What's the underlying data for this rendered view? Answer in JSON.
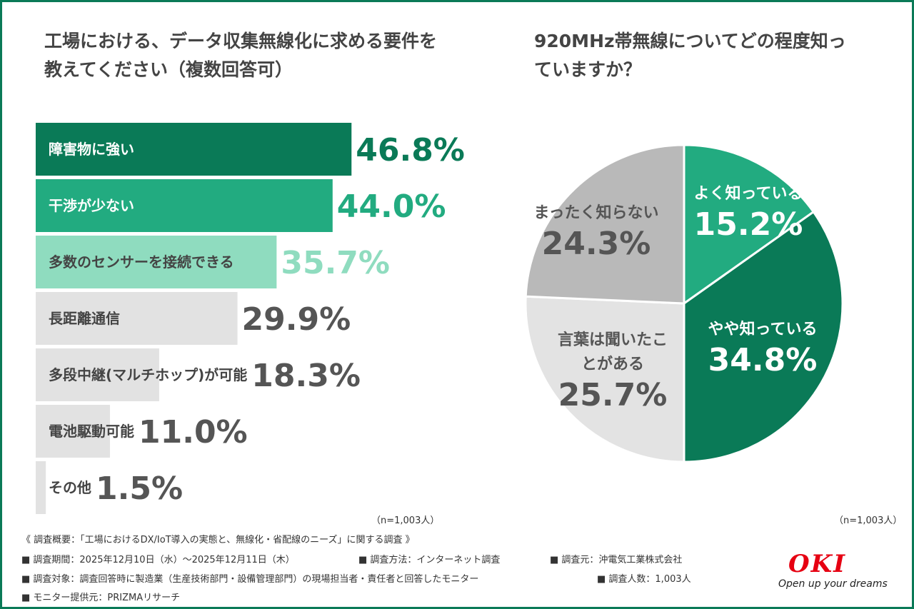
{
  "chart_data": [
    {
      "type": "bar",
      "title": "工場における、データ収集無線化に求める要件を教えてください（複数回答可）",
      "categories": [
        "障害物に強い",
        "干渉が少ない",
        "多数のセンサーを接続できる",
        "長距離通信",
        "多段中継(マルチホップ)が可能",
        "電池駆動可能",
        "その他"
      ],
      "values": [
        46.8,
        44.0,
        35.7,
        29.9,
        18.3,
        11.0,
        1.5
      ],
      "value_labels": [
        "46.8%",
        "44.0%",
        "35.7%",
        "29.9%",
        "18.3%",
        "11.0%",
        "1.5%"
      ],
      "colors": [
        "#0a7a57",
        "#22ab80",
        "#8fdcbf",
        "#e2e2e2",
        "#e2e2e2",
        "#e2e2e2",
        "#e2e2e2"
      ],
      "note": "（n=1,003人）"
    },
    {
      "type": "pie",
      "title": "920MHz帯無線についてどの程度知っていますか？",
      "categories": [
        "よく知っている",
        "やや知っている",
        "言葉は聞いたことがある",
        "まったく知らない"
      ],
      "values": [
        15.2,
        34.8,
        25.7,
        24.3
      ],
      "value_labels": [
        "15.2%",
        "34.8%",
        "25.7%",
        "24.3%"
      ],
      "colors": [
        "#22ab80",
        "#0a7a57",
        "#e3e3e3",
        "#b9b9b9"
      ],
      "note": "（n=1,003人）"
    }
  ],
  "footer": {
    "lines": [
      "《 調査概要：「工場におけるDX/IoT導入の実態と、無線化・省配線のニーズ」に関する調査 》",
      "■ 調査期間：2025年12月10日（水）～2025年12月11日（木）",
      "■ 調査方法：インターネット調査",
      "■ 調査元：沖電気工業株式会社",
      "■ 調査対象：調査回答時に製造業（生産技術部門・設備管理部門）の現場担当者・責任者と回答したモニター",
      "■ 調査人数：1,003人",
      "■ モニター提供元：PRIZMAリサーチ"
    ]
  },
  "logo": {
    "name": "OKI",
    "tagline": "Open up your dreams"
  }
}
